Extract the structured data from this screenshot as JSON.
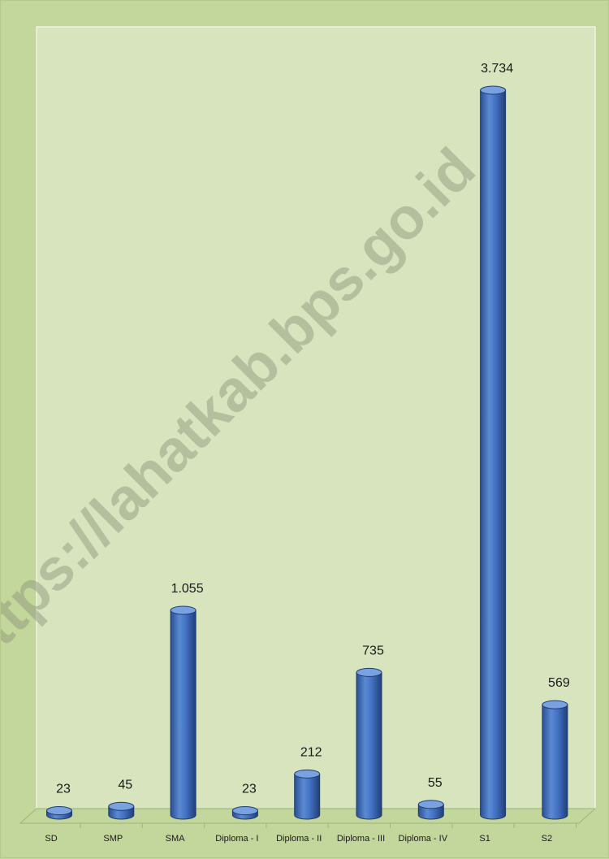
{
  "chart_data": {
    "type": "bar",
    "style": "3d-cylinder",
    "categories": [
      "SD",
      "SMP",
      "SMA",
      "Diploma - I",
      "Diploma - II",
      "Diploma - III",
      "Diploma - IV",
      "S1",
      "S2"
    ],
    "values": [
      23,
      45,
      1055,
      23,
      212,
      735,
      55,
      3734,
      569
    ],
    "value_labels": [
      "23",
      "45",
      "1.055",
      "23",
      "212",
      "735",
      "55",
      "3.734",
      "569"
    ],
    "title": "",
    "xlabel": "",
    "ylabel": "",
    "ylim": [
      0,
      4000
    ],
    "grid": false,
    "legend": "none",
    "colors": {
      "background": "#c3d69b",
      "plot_wall": "#d7e4bd",
      "floor": "#c3d69b",
      "bar": "#4472c4",
      "bar_dark": "#2a4f91",
      "bar_light": "#7aa2e0",
      "text": "#1a1a1a"
    }
  },
  "watermark": "https://lahatkab.bps.go.id"
}
